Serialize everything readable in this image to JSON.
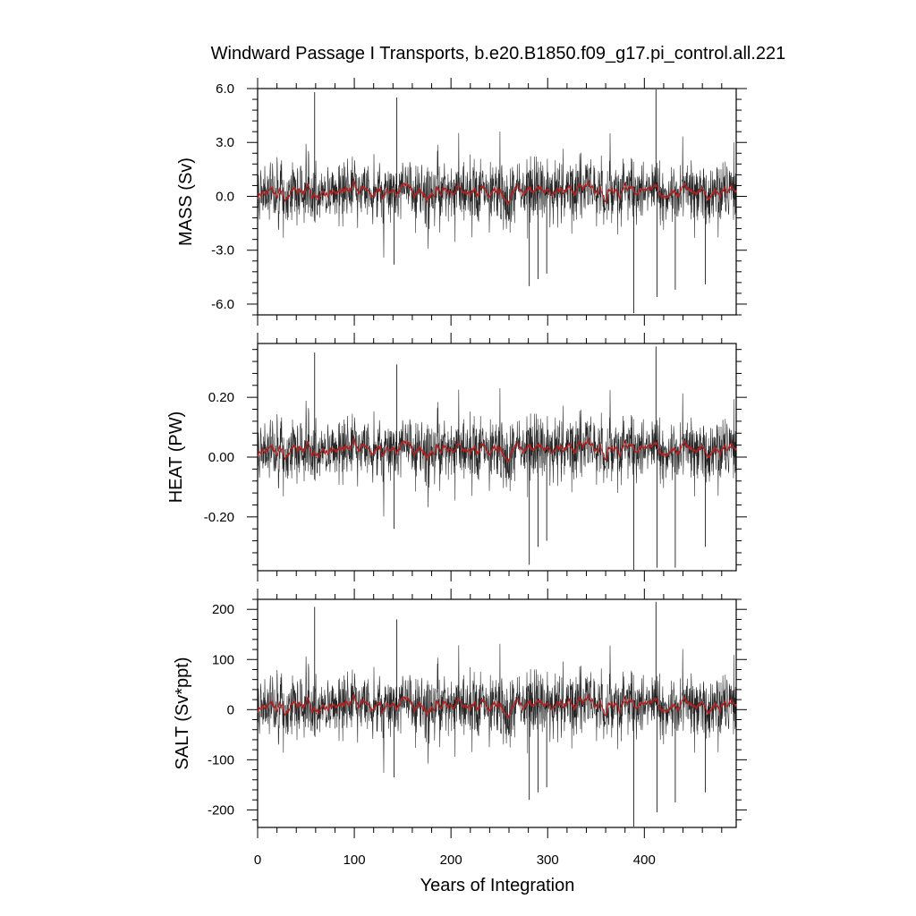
{
  "chart_data": {
    "type": "line",
    "title": "Windward Passage I Transports, b.e20.B1850.f09_g17.pi_control.all.221",
    "xlabel": "Years of Integration",
    "xlim": [
      0,
      495
    ],
    "x_ticks": [
      0,
      100,
      200,
      300,
      400
    ],
    "x_tick_labels": [
      "0",
      "100",
      "200",
      "300",
      "400"
    ],
    "grid": false,
    "series_colors": {
      "monthly": "#000000",
      "smoothed": "#b22222"
    },
    "panels": [
      {
        "ylabel": "MASS (Sv)",
        "ylim": [
          -6.6,
          6.0
        ],
        "y_ticks": [
          6.0,
          3.0,
          0.0,
          -3.0,
          -6.0
        ],
        "y_tick_labels": [
          "6.0",
          "3.0",
          "0.0",
          "-3.0",
          "-6.0"
        ],
        "mean": 0.25,
        "noise_sd": 0.9,
        "spikes": [
          [
            59,
            5.8
          ],
          [
            141,
            -3.8
          ],
          [
            144,
            5.5
          ],
          [
            281,
            -5.0
          ],
          [
            290,
            -4.6
          ],
          [
            299,
            -4.3
          ],
          [
            389,
            -6.5
          ],
          [
            412,
            6.0
          ],
          [
            413,
            -5.6
          ],
          [
            432,
            -5.2
          ],
          [
            463,
            -4.9
          ]
        ]
      },
      {
        "ylabel": "HEAT (PW)",
        "ylim": [
          -0.38,
          0.38
        ],
        "y_ticks": [
          0.2,
          0.0,
          -0.2
        ],
        "y_tick_labels": [
          "0.20",
          "0.00",
          "-0.20"
        ],
        "mean": 0.025,
        "noise_sd": 0.055,
        "spikes": [
          [
            59,
            0.35
          ],
          [
            141,
            -0.24
          ],
          [
            144,
            0.31
          ],
          [
            281,
            -0.36
          ],
          [
            290,
            -0.3
          ],
          [
            299,
            -0.28
          ],
          [
            389,
            -0.38
          ],
          [
            412,
            0.37
          ],
          [
            413,
            -0.37
          ],
          [
            432,
            -0.37
          ],
          [
            463,
            -0.3
          ]
        ]
      },
      {
        "ylabel": "SALT (Sv*ppt)",
        "ylim": [
          -235,
          220
        ],
        "y_ticks": [
          200,
          100,
          0,
          -100,
          -200
        ],
        "y_tick_labels": [
          "200",
          "100",
          "0",
          "-100",
          "-200"
        ],
        "mean": 8,
        "noise_sd": 33,
        "spikes": [
          [
            59,
            205
          ],
          [
            141,
            -135
          ],
          [
            144,
            180
          ],
          [
            281,
            -180
          ],
          [
            290,
            -165
          ],
          [
            299,
            -155
          ],
          [
            389,
            -235
          ],
          [
            412,
            215
          ],
          [
            413,
            -205
          ],
          [
            432,
            -185
          ],
          [
            463,
            -165
          ]
        ]
      }
    ]
  }
}
